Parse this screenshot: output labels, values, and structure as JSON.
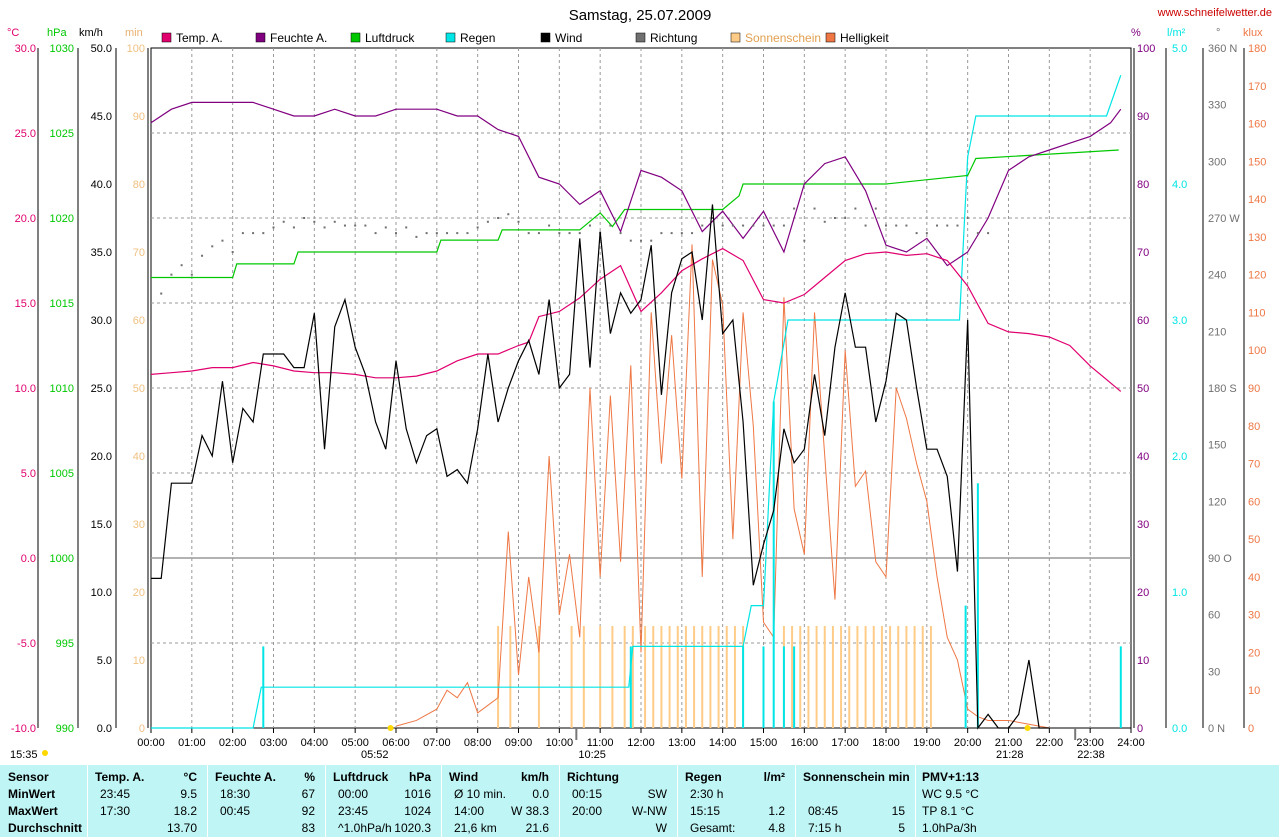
{
  "header": {
    "title": "Samstag, 25.07.2009",
    "site": "www.schneifelwetter.de"
  },
  "axes": {
    "temp_unit": "°C",
    "hpa_unit": "hPa",
    "kmh_unit": "km/h",
    "min_unit": "min",
    "pct_unit": "%",
    "rain_unit": "l/m²",
    "dir_unit": "°",
    "klux_unit": "klux",
    "temp_ticks": [
      "30.0",
      "25.0",
      "20.0",
      "15.0",
      "10.0",
      "5.0",
      "0.0",
      "-5.0",
      "-10.0"
    ],
    "hpa_ticks": [
      "1030",
      "1025",
      "1020",
      "1015",
      "1010",
      "1005",
      "1000",
      "995",
      "990"
    ],
    "kmh_ticks": [
      "50.0",
      "45.0",
      "40.0",
      "35.0",
      "30.0",
      "25.0",
      "20.0",
      "15.0",
      "10.0",
      "5.0",
      "0.0"
    ],
    "min_ticks": [
      "100",
      "90",
      "80",
      "70",
      "60",
      "50",
      "40",
      "30",
      "20",
      "10",
      "0"
    ],
    "pct_ticks": [
      "100",
      "90",
      "80",
      "70",
      "60",
      "50",
      "40",
      "30",
      "20",
      "10",
      "0"
    ],
    "rain_ticks": [
      "5.0",
      "4.0",
      "3.0",
      "2.0",
      "1.0",
      "0.0"
    ],
    "dir_ticks": [
      "360 N",
      "330",
      "300",
      "270 W",
      "240",
      "210",
      "180 S",
      "150",
      "120",
      "90 O",
      "60",
      "30",
      "0 N"
    ],
    "klux_ticks": [
      "180",
      "170",
      "160",
      "150",
      "140",
      "130",
      "120",
      "110",
      "100",
      "90",
      "80",
      "70",
      "60",
      "50",
      "40",
      "30",
      "20",
      "10",
      "0"
    ],
    "time_ticks": [
      "00:00",
      "01:00",
      "02:00",
      "03:00",
      "04:00",
      "05:00",
      "06:00",
      "07:00",
      "08:00",
      "09:00",
      "10:00",
      "11:00",
      "12:00",
      "13:00",
      "14:00",
      "15:00",
      "16:00",
      "17:00",
      "18:00",
      "19:00",
      "20:00",
      "21:00",
      "22:00",
      "23:00",
      "24:00"
    ]
  },
  "sun_marks": {
    "sunrise": "05:52",
    "sunset": "21:28",
    "moonrise": "10:25",
    "moonset": "22:38",
    "left_time": "15:35"
  },
  "legend": [
    {
      "label": "Temp. A.",
      "color": "#e0006e"
    },
    {
      "label": "Feuchte A.",
      "color": "#800080"
    },
    {
      "label": "Luftdruck",
      "color": "#00c800"
    },
    {
      "label": "Regen",
      "color": "#00e5e5"
    },
    {
      "label": "Wind",
      "color": "#000000"
    },
    {
      "label": "Richtung",
      "color": "#707070"
    },
    {
      "label": "Sonnenschein",
      "color": "#ffcc88"
    },
    {
      "label": "Helligkeit",
      "color": "#ee7744"
    }
  ],
  "colors": {
    "temp": "#e0006e",
    "humidity": "#800080",
    "pressure": "#00c800",
    "rain": "#00e5e5",
    "wind": "#000000",
    "direction": "#707070",
    "sunshine": "#ffcc88",
    "brightness": "#ee7744",
    "min_axis": "#ffcc88",
    "klux_axis": "#ee7744"
  },
  "chart_data": {
    "type": "line",
    "title": "Samstag, 25.07.2009",
    "x_unit": "hour of day",
    "xlim": [
      0,
      24
    ],
    "series": [
      {
        "name": "Temp. A.",
        "unit": "°C",
        "ylim": [
          -10,
          30
        ],
        "x": [
          0,
          0.5,
          1,
          1.5,
          2,
          2.5,
          3,
          3.5,
          4,
          4.5,
          5,
          5.5,
          6,
          6.5,
          7,
          7.5,
          8,
          8.5,
          9,
          9.25,
          9.5,
          10,
          10.5,
          11,
          11.5,
          12,
          12.5,
          13,
          13.5,
          14,
          14.5,
          15,
          15.5,
          16,
          16.5,
          17,
          17.5,
          18,
          18.5,
          19,
          19.5,
          20,
          20.5,
          21,
          21.5,
          22,
          22.5,
          23,
          23.5,
          23.75
        ],
        "y": [
          10.8,
          10.9,
          11.0,
          11.2,
          11.2,
          11.5,
          11.3,
          11.0,
          10.9,
          10.9,
          10.8,
          10.6,
          10.6,
          10.7,
          11.0,
          11.6,
          12.0,
          12.0,
          12.5,
          12.7,
          14.2,
          14.5,
          15.3,
          16.4,
          17.2,
          14.5,
          15.6,
          16.9,
          17.6,
          18.2,
          17.5,
          15.2,
          15.0,
          15.5,
          16.5,
          17.5,
          17.9,
          18.0,
          17.8,
          17.9,
          17.5,
          16.0,
          13.8,
          13.3,
          13.2,
          13.0,
          12.5,
          11.3,
          10.3,
          9.8
        ]
      },
      {
        "name": "Feuchte A.",
        "unit": "%",
        "ylim": [
          0,
          100
        ],
        "x": [
          0,
          0.5,
          1,
          1.5,
          2,
          2.5,
          3,
          3.5,
          4,
          4.5,
          5,
          5.5,
          6,
          6.5,
          7,
          7.5,
          8,
          8.5,
          9,
          9.5,
          10,
          10.5,
          11,
          11.5,
          12,
          12.5,
          13,
          13.5,
          14,
          14.5,
          15,
          15.5,
          16,
          16.5,
          17,
          17.5,
          18,
          18.5,
          19,
          19.5,
          20,
          20.5,
          21,
          21.5,
          22,
          22.5,
          23,
          23.5,
          23.75
        ],
        "y": [
          89,
          91,
          92,
          92,
          92,
          92,
          91,
          90,
          90,
          91,
          90,
          90,
          91,
          91,
          91,
          90,
          90,
          88,
          87,
          81,
          80,
          77,
          79,
          73,
          82,
          81,
          79,
          73,
          76,
          72,
          76,
          70,
          80,
          83,
          84,
          79,
          71,
          70,
          72,
          68,
          70,
          75,
          82,
          84,
          85,
          86,
          87,
          89,
          91
        ]
      },
      {
        "name": "Luftdruck",
        "unit": "hPa",
        "ylim": [
          990,
          1030
        ],
        "x": [
          0,
          2,
          2.1,
          3.5,
          3.6,
          7,
          7.1,
          8.5,
          8.6,
          10.5,
          11,
          11.3,
          11.6,
          13.5,
          14,
          14.4,
          14.5,
          16,
          18,
          20,
          20.2,
          23.7
        ],
        "y": [
          1016.5,
          1016.5,
          1017.3,
          1017.3,
          1018.0,
          1018.0,
          1018.7,
          1018.7,
          1019.3,
          1019.3,
          1020.3,
          1019.5,
          1020.5,
          1020.5,
          1020.5,
          1021.3,
          1022.0,
          1022.0,
          1022.0,
          1022.5,
          1023.5,
          1024.0
        ]
      },
      {
        "name": "Regen",
        "unit": "l/m²",
        "ylim": [
          0,
          5
        ],
        "x": [
          0,
          2.5,
          2.7,
          3,
          11.7,
          11.8,
          12,
          14.5,
          14.7,
          15.0,
          15.25,
          15.6,
          16.0,
          19,
          19.8,
          20.0,
          20.2,
          23.4,
          23.75
        ],
        "y": [
          0,
          0,
          0.3,
          0.3,
          0.3,
          0.6,
          0.6,
          0.6,
          0.9,
          0.9,
          2.4,
          3.0,
          3.0,
          3.0,
          3.0,
          4.2,
          4.5,
          4.5,
          4.8
        ]
      },
      {
        "name": "Wind",
        "unit": "km/h",
        "ylim": [
          0,
          50
        ],
        "x": [
          0,
          0.25,
          0.5,
          0.75,
          1,
          1.25,
          1.5,
          1.75,
          2,
          2.25,
          2.5,
          2.75,
          3,
          3.25,
          3.5,
          3.75,
          4,
          4.25,
          4.5,
          4.75,
          5,
          5.25,
          5.5,
          5.75,
          6,
          6.25,
          6.5,
          6.75,
          7,
          7.25,
          7.5,
          7.75,
          8,
          8.25,
          8.5,
          8.75,
          9,
          9.25,
          9.5,
          9.75,
          10,
          10.25,
          10.5,
          10.75,
          11,
          11.25,
          11.5,
          11.75,
          12,
          12.25,
          12.5,
          12.75,
          13,
          13.25,
          13.5,
          13.75,
          14,
          14.25,
          14.5,
          14.75,
          15,
          15.25,
          15.5,
          15.75,
          16,
          16.25,
          16.5,
          16.75,
          17,
          17.25,
          17.5,
          17.75,
          18,
          18.25,
          18.5,
          18.75,
          19,
          19.25,
          19.5,
          19.75,
          20,
          20.25,
          20.5,
          20.75,
          21,
          21.25,
          21.5,
          21.75,
          22
        ],
        "y": [
          11,
          11,
          18,
          18,
          18,
          21.5,
          20,
          25.5,
          19.5,
          23.5,
          22.5,
          27.5,
          27.5,
          27.5,
          26.5,
          26.5,
          30.5,
          20.5,
          29.5,
          31.5,
          28,
          26,
          22.5,
          20.5,
          27,
          22,
          19.5,
          21.5,
          22,
          18.5,
          19,
          18,
          22,
          27.5,
          22.5,
          25,
          27,
          28.5,
          26,
          31.5,
          25,
          26,
          36,
          26.5,
          36.5,
          29,
          32,
          30.5,
          31.5,
          35.5,
          24.5,
          32,
          34.5,
          35,
          30,
          38.5,
          29,
          30,
          22.5,
          10.5,
          13.5,
          16,
          22,
          19.5,
          20.5,
          26,
          21.5,
          28,
          32,
          28,
          28,
          22.5,
          25.5,
          30.5,
          30,
          25,
          20.5,
          20.5,
          18.5,
          11.5,
          30,
          0,
          1,
          0,
          0,
          1,
          5,
          0,
          0
        ]
      },
      {
        "name": "Richtung",
        "unit": "°",
        "x": [
          0.25,
          0.5,
          0.75,
          1,
          1.25,
          1.5,
          1.75,
          2,
          2.25,
          2.5,
          2.75,
          3,
          3.25,
          3.5,
          3.75,
          4,
          4.25,
          4.5,
          4.75,
          5,
          5.25,
          5.5,
          5.75,
          6,
          6.25,
          6.5,
          6.75,
          7,
          7.25,
          7.5,
          7.75,
          8,
          8.25,
          8.5,
          8.75,
          9,
          9.25,
          9.5,
          9.75,
          10,
          10.25,
          10.5,
          10.75,
          11,
          11.25,
          11.5,
          11.75,
          12,
          12.25,
          12.5,
          12.75,
          13,
          13.25,
          13.5,
          13.75,
          14,
          14.25,
          14.5,
          14.75,
          15,
          15.25,
          15.5,
          15.75,
          16,
          16.25,
          16.5,
          16.75,
          17,
          17.25,
          17.5,
          17.75,
          18,
          18.25,
          18.5,
          18.75,
          19,
          19.25,
          19.5,
          19.75,
          20,
          20.25,
          20.5
        ],
        "y": [
          230,
          240,
          245,
          240,
          250,
          255,
          258,
          252,
          262,
          262,
          262,
          265,
          268,
          265,
          270,
          268,
          265,
          268,
          266,
          266,
          266,
          262,
          265,
          262,
          265,
          260,
          262,
          262,
          262,
          262,
          262,
          265,
          268,
          270,
          272,
          268,
          262,
          262,
          266,
          262,
          262,
          262,
          266,
          262,
          266,
          262,
          258,
          258,
          258,
          262,
          262,
          262,
          262,
          266,
          270,
          266,
          266,
          266,
          266,
          266,
          266,
          266,
          275,
          258,
          275,
          268,
          270,
          270,
          275,
          266,
          275,
          266,
          266,
          266,
          262,
          262,
          266,
          266,
          266,
          270,
          262,
          262
        ]
      },
      {
        "name": "Sonnenschein",
        "unit": "min",
        "ylim": [
          0,
          100
        ],
        "x": [
          8.5,
          8.8,
          9.5,
          10.3,
          10.6,
          11.0,
          11.3,
          11.6,
          11.8,
          12.1,
          12.3,
          12.5,
          12.7,
          12.9,
          13.1,
          13.3,
          13.5,
          13.7,
          13.9,
          14.1,
          14.3,
          14.5,
          15.5,
          15.7,
          15.9,
          16.1,
          16.3,
          16.5,
          16.7,
          16.9,
          17.1,
          17.3,
          17.5,
          17.7,
          17.9,
          18.1,
          18.3,
          18.5,
          18.7,
          18.9,
          19.1
        ],
        "y": [
          15,
          15,
          15,
          15,
          15,
          15,
          15,
          15,
          15,
          15,
          15,
          15,
          15,
          15,
          15,
          15,
          15,
          15,
          15,
          15,
          15,
          15,
          15,
          15,
          15,
          15,
          15,
          15,
          15,
          15,
          15,
          15,
          15,
          15,
          15,
          15,
          15,
          15,
          15,
          15,
          15
        ]
      },
      {
        "name": "Helligkeit",
        "unit": "klux",
        "ylim": [
          0,
          180
        ],
        "x": [
          6,
          6.5,
          7,
          7.25,
          7.5,
          7.75,
          8,
          8.25,
          8.5,
          8.75,
          9,
          9.25,
          9.5,
          9.75,
          10,
          10.25,
          10.5,
          10.75,
          11,
          11.25,
          11.5,
          11.75,
          12,
          12.25,
          12.5,
          12.75,
          13,
          13.25,
          13.5,
          13.75,
          14,
          14.25,
          14.5,
          14.75,
          15,
          15.25,
          15.5,
          15.75,
          16,
          16.25,
          16.5,
          16.75,
          17,
          17.25,
          17.5,
          17.75,
          18,
          18.25,
          18.5,
          18.75,
          19,
          19.25,
          19.5,
          19.75,
          20,
          20.25,
          20.5,
          21,
          21.5,
          22
        ],
        "y": [
          0.5,
          2,
          5,
          10,
          8,
          12,
          4,
          6,
          8,
          52,
          14,
          40,
          20,
          72,
          30,
          46,
          24,
          90,
          40,
          88,
          44,
          96,
          20,
          110,
          70,
          104,
          66,
          128,
          40,
          124,
          112,
          50,
          110,
          80,
          28,
          24,
          114,
          58,
          46,
          110,
          72,
          34,
          100,
          64,
          68,
          44,
          40,
          90,
          82,
          70,
          60,
          40,
          24,
          18,
          5,
          3,
          2,
          2,
          1,
          0
        ]
      }
    ]
  },
  "stats": {
    "headers": {
      "sensor": "Sensor",
      "temp": "Temp. A.",
      "temp_unit": "°C",
      "hum": "Feuchte A.",
      "hum_unit": "%",
      "pres": "Luftdruck",
      "pres_unit": "hPa",
      "wind": "Wind",
      "wind_unit": "km/h",
      "dir": "Richtung",
      "rain": "Regen",
      "rain_unit": "l/m²",
      "sun": "Sonnenschein min",
      "pmv": "PMV+1:13"
    },
    "rows": [
      "MinWert",
      "MaxWert",
      "Durchschnitt"
    ],
    "temp": [
      [
        "23:45",
        "9.5"
      ],
      [
        "17:30",
        "18.2"
      ],
      [
        "",
        "13.70"
      ]
    ],
    "hum": [
      [
        "18:30",
        "67"
      ],
      [
        "00:45",
        "92"
      ],
      [
        "",
        "83"
      ]
    ],
    "pres": [
      [
        "00:00",
        "1016"
      ],
      [
        "23:45",
        "1024"
      ],
      [
        "^1.0hPa/h",
        "1020.3"
      ]
    ],
    "wind": [
      [
        "Ø 10 min.",
        "0.0"
      ],
      [
        "14:00",
        "W 38.3"
      ],
      [
        "21,6 km",
        "21.6"
      ]
    ],
    "dir": [
      [
        "00:15",
        "SW"
      ],
      [
        "20:00",
        "W-NW"
      ],
      [
        "",
        "W"
      ]
    ],
    "rain": [
      [
        "2:30 h",
        ""
      ],
      [
        "15:15",
        "1.2"
      ],
      [
        "Gesamt:",
        "4.8"
      ]
    ],
    "sun": [
      [
        "",
        ""
      ],
      [
        "08:45",
        "15"
      ],
      [
        "7:15 h",
        "5"
      ]
    ],
    "pmv": [
      "WC 9.5 °C",
      "TP 8.1 °C",
      "1.0hPa/3h"
    ]
  }
}
